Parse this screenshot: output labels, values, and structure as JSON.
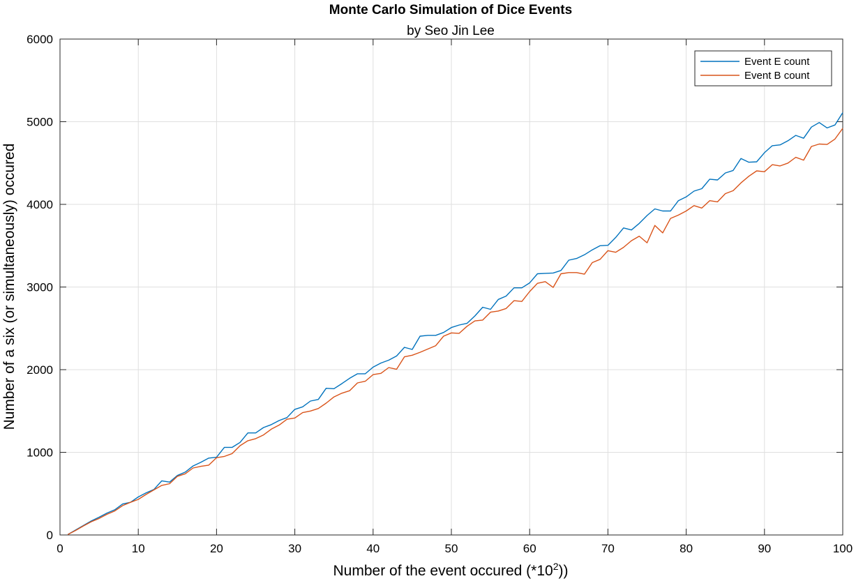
{
  "chart_data": {
    "type": "line",
    "title": "Monte Carlo Simulation of Dice Events",
    "subtitle": "by Seo Jin Lee",
    "xlabel_prefix": "Number  of  the  event  occured  (*10",
    "xlabel_sup": "2",
    "xlabel_suffix": "))",
    "ylabel": "Number of a six (or simultaneously) occured",
    "xlim": [
      0,
      100
    ],
    "ylim": [
      0,
      6000
    ],
    "xticks": [
      0,
      10,
      20,
      30,
      40,
      50,
      60,
      70,
      80,
      90,
      100
    ],
    "yticks": [
      0,
      1000,
      2000,
      3000,
      4000,
      5000,
      6000
    ],
    "grid": true,
    "legend_position": "top-right",
    "series": [
      {
        "name": "Event E count",
        "color": "#0072BD",
        "x": [
          1,
          2,
          3,
          4,
          5,
          6,
          7,
          8,
          9,
          10,
          11,
          12,
          13,
          14,
          15,
          16,
          17,
          18,
          19,
          20,
          21,
          22,
          23,
          24,
          25,
          26,
          27,
          28,
          29,
          30,
          31,
          32,
          33,
          34,
          35,
          36,
          37,
          38,
          39,
          40,
          41,
          42,
          43,
          44,
          45,
          46,
          47,
          48,
          49,
          50,
          51,
          52,
          53,
          54,
          55,
          56,
          57,
          58,
          59,
          60,
          61,
          62,
          63,
          64,
          65,
          66,
          67,
          68,
          69,
          70,
          71,
          72,
          73,
          74,
          75,
          76,
          77,
          78,
          79,
          80,
          81,
          82,
          83,
          84,
          85,
          86,
          87,
          88,
          89,
          90,
          91,
          92,
          93,
          94,
          95,
          96,
          97,
          98,
          99,
          100
        ],
        "y": [
          5,
          60,
          115,
          170,
          215,
          265,
          305,
          375,
          395,
          460,
          510,
          550,
          655,
          640,
          720,
          760,
          835,
          880,
          930,
          940,
          1060,
          1060,
          1120,
          1235,
          1235,
          1300,
          1335,
          1385,
          1420,
          1520,
          1550,
          1620,
          1640,
          1775,
          1770,
          1830,
          1895,
          1950,
          1950,
          2030,
          2080,
          2115,
          2165,
          2270,
          2245,
          2405,
          2415,
          2415,
          2450,
          2510,
          2540,
          2560,
          2650,
          2755,
          2730,
          2850,
          2890,
          2990,
          2990,
          3050,
          3160,
          3165,
          3170,
          3200,
          3325,
          3345,
          3390,
          3450,
          3500,
          3505,
          3600,
          3715,
          3690,
          3770,
          3865,
          3945,
          3920,
          3920,
          4045,
          4090,
          4160,
          4190,
          4305,
          4295,
          4380,
          4410,
          4555,
          4510,
          4515,
          4625,
          4710,
          4720,
          4770,
          4835,
          4800,
          4935,
          4990,
          4925,
          4960,
          5110
        ]
      },
      {
        "name": "Event B count",
        "color": "#D95319",
        "x": [
          1,
          2,
          3,
          4,
          5,
          6,
          7,
          8,
          9,
          10,
          11,
          12,
          13,
          14,
          15,
          16,
          17,
          18,
          19,
          20,
          21,
          22,
          23,
          24,
          25,
          26,
          27,
          28,
          29,
          30,
          31,
          32,
          33,
          34,
          35,
          36,
          37,
          38,
          39,
          40,
          41,
          42,
          43,
          44,
          45,
          46,
          47,
          48,
          49,
          50,
          51,
          52,
          53,
          54,
          55,
          56,
          57,
          58,
          59,
          60,
          61,
          62,
          63,
          64,
          65,
          66,
          67,
          68,
          69,
          70,
          71,
          72,
          73,
          74,
          75,
          76,
          77,
          78,
          79,
          80,
          81,
          82,
          83,
          84,
          85,
          86,
          87,
          88,
          89,
          90,
          91,
          92,
          93,
          94,
          95,
          96,
          97,
          98,
          99,
          100
        ],
        "y": [
          5,
          55,
          110,
          160,
          200,
          250,
          290,
          355,
          395,
          430,
          490,
          545,
          600,
          620,
          710,
          740,
          810,
          830,
          845,
          935,
          950,
          985,
          1080,
          1140,
          1165,
          1210,
          1280,
          1330,
          1400,
          1415,
          1480,
          1500,
          1530,
          1595,
          1670,
          1715,
          1745,
          1840,
          1860,
          1940,
          1955,
          2025,
          2005,
          2155,
          2175,
          2210,
          2250,
          2290,
          2405,
          2445,
          2440,
          2525,
          2590,
          2600,
          2695,
          2710,
          2740,
          2835,
          2825,
          2945,
          3045,
          3065,
          2995,
          3160,
          3175,
          3175,
          3155,
          3295,
          3335,
          3440,
          3420,
          3480,
          3560,
          3615,
          3535,
          3745,
          3655,
          3830,
          3870,
          3920,
          3985,
          3955,
          4045,
          4030,
          4130,
          4165,
          4260,
          4340,
          4405,
          4395,
          4480,
          4465,
          4500,
          4570,
          4535,
          4700,
          4730,
          4725,
          4790,
          4920
        ]
      }
    ]
  }
}
